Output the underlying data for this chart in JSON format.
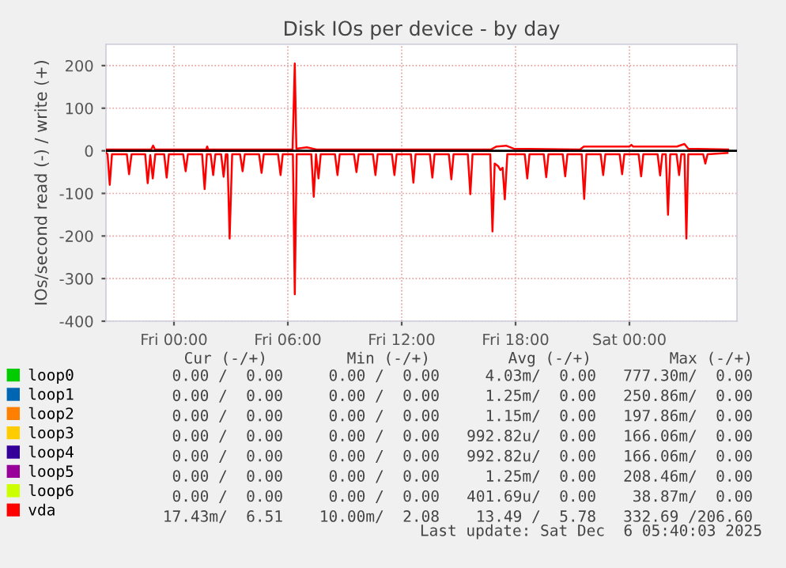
{
  "chart_data": {
    "type": "line",
    "title": "Disk IOs per device - by day",
    "ylabel": "IOs/second read (-) / write (+)",
    "xlim": [
      "2025-12-04T20:25",
      "2025-12-06T05:40"
    ],
    "xticks": [
      {
        "value": "2025-12-05T00:00",
        "label": "Fri 00:00"
      },
      {
        "value": "2025-12-05T06:00",
        "label": "Fri 06:00"
      },
      {
        "value": "2025-12-05T12:00",
        "label": "Fri 12:00"
      },
      {
        "value": "2025-12-05T18:00",
        "label": "Fri 18:00"
      },
      {
        "value": "2025-12-06T00:00",
        "label": "Sat 00:00"
      }
    ],
    "ylim": [
      -400,
      250
    ],
    "yticks": [
      -400,
      -300,
      -200,
      -100,
      0,
      100,
      200
    ],
    "grid": true,
    "legend": "bottom",
    "ref_lines": [
      {
        "axis": "y",
        "value": 0,
        "color": "#000000"
      }
    ],
    "series": [
      {
        "name": "loop0",
        "color": "#00cc00"
      },
      {
        "name": "loop1",
        "color": "#0066b3"
      },
      {
        "name": "loop2",
        "color": "#ff8000"
      },
      {
        "name": "loop3",
        "color": "#ffcc00"
      },
      {
        "name": "loop4",
        "color": "#330099"
      },
      {
        "name": "loop5",
        "color": "#990099"
      },
      {
        "name": "loop6",
        "color": "#ccff00"
      },
      {
        "name": "vda",
        "color": "#ff0000",
        "x": [
          "2025-12-04T20:26",
          "2025-12-04T20:30",
          "2025-12-04T20:37",
          "2025-12-04T20:44",
          "2025-12-04T21:31",
          "2025-12-04T21:38",
          "2025-12-04T21:46",
          "2025-12-04T22:29",
          "2025-12-04T22:37",
          "2025-12-04T22:45",
          "2025-12-04T22:53",
          "2025-12-04T23:01",
          "2025-12-04T23:29",
          "2025-12-04T23:37",
          "2025-12-04T23:44",
          "2025-12-05T00:29",
          "2025-12-05T00:37",
          "2025-12-05T00:44",
          "2025-12-05T01:29",
          "2025-12-05T01:37",
          "2025-12-05T01:44",
          "2025-12-05T01:56",
          "2025-12-05T02:04",
          "2025-12-05T02:11",
          "2025-12-05T02:29",
          "2025-12-05T02:37",
          "2025-12-05T02:44",
          "2025-12-05T02:49",
          "2025-12-05T02:56",
          "2025-12-05T03:04",
          "2025-12-05T03:29",
          "2025-12-05T03:37",
          "2025-12-05T03:44",
          "2025-12-05T04:29",
          "2025-12-05T04:37",
          "2025-12-05T04:44",
          "2025-12-05T05:29",
          "2025-12-05T05:37",
          "2025-12-05T05:44",
          "2025-12-05T06:16",
          "2025-12-05T06:22",
          "2025-12-05T06:28",
          "2025-12-05T07:14",
          "2025-12-05T07:22",
          "2025-12-05T07:29",
          "2025-12-05T07:37",
          "2025-12-05T07:44",
          "2025-12-05T08:29",
          "2025-12-05T08:37",
          "2025-12-05T08:44",
          "2025-12-05T09:29",
          "2025-12-05T09:37",
          "2025-12-05T09:44",
          "2025-12-05T10:29",
          "2025-12-05T10:37",
          "2025-12-05T10:44",
          "2025-12-05T11:29",
          "2025-12-05T11:37",
          "2025-12-05T11:44",
          "2025-12-05T12:29",
          "2025-12-05T12:37",
          "2025-12-05T12:44",
          "2025-12-05T13:29",
          "2025-12-05T13:37",
          "2025-12-05T13:44",
          "2025-12-05T14:29",
          "2025-12-05T14:37",
          "2025-12-05T14:44",
          "2025-12-05T15:29",
          "2025-12-05T15:37",
          "2025-12-05T15:44",
          "2025-12-05T16:40",
          "2025-12-05T16:47",
          "2025-12-05T16:54",
          "2025-12-05T17:05",
          "2025-12-05T17:12",
          "2025-12-05T17:19",
          "2025-12-05T17:26",
          "2025-12-05T17:34",
          "2025-12-05T18:29",
          "2025-12-05T18:37",
          "2025-12-05T18:44",
          "2025-12-05T19:29",
          "2025-12-05T19:37",
          "2025-12-05T19:44",
          "2025-12-05T20:29",
          "2025-12-05T20:37",
          "2025-12-05T20:44",
          "2025-12-05T21:29",
          "2025-12-05T21:37",
          "2025-12-05T21:44",
          "2025-12-05T22:29",
          "2025-12-05T22:37",
          "2025-12-05T22:44",
          "2025-12-05T23:29",
          "2025-12-05T23:37",
          "2025-12-05T23:44",
          "2025-12-06T00:29",
          "2025-12-06T00:37",
          "2025-12-06T00:44",
          "2025-12-06T01:29",
          "2025-12-06T01:37",
          "2025-12-06T01:44",
          "2025-12-06T01:55",
          "2025-12-06T02:02",
          "2025-12-06T02:09",
          "2025-12-06T02:29",
          "2025-12-06T02:37",
          "2025-12-06T02:44",
          "2025-12-06T02:54",
          "2025-12-06T03:00",
          "2025-12-06T03:06",
          "2025-12-06T03:53",
          "2025-12-06T04:00",
          "2025-12-06T04:07",
          "2025-12-06T05:10"
        ],
        "values": [
          -5,
          -8,
          -80,
          -8,
          -8,
          -55,
          -8,
          -8,
          -76,
          -10,
          -65,
          -8,
          -8,
          -63,
          -8,
          -8,
          -48,
          -8,
          -8,
          -90,
          -8,
          -8,
          -57,
          -8,
          -8,
          -61,
          -8,
          -8,
          -206,
          -8,
          -8,
          -48,
          -8,
          -8,
          -52,
          -8,
          -8,
          -57,
          -8,
          -8,
          -337,
          -8,
          -8,
          -108,
          -8,
          -65,
          -8,
          -8,
          -57,
          -8,
          -8,
          -50,
          -8,
          -8,
          -57,
          -8,
          -8,
          -57,
          -8,
          -8,
          -75,
          -8,
          -8,
          -63,
          -8,
          -8,
          -67,
          -8,
          -8,
          -102,
          -8,
          -8,
          -189,
          -30,
          -36,
          -45,
          -40,
          -114,
          -8,
          -8,
          -65,
          -8,
          -8,
          -62,
          -8,
          -8,
          -60,
          -8,
          -8,
          -113,
          -8,
          -8,
          -57,
          -8,
          -8,
          -55,
          -8,
          -8,
          -60,
          -8,
          -8,
          -58,
          -8,
          -8,
          -150,
          -8,
          -8,
          -57,
          -8,
          -8,
          -206,
          -8,
          -8,
          -30,
          -8,
          -5
        ]
      },
      {
        "color": "#ff0000",
        "x": [
          "2025-12-04T20:26",
          "2025-12-04T22:48",
          "2025-12-04T22:54",
          "2025-12-04T23:00",
          "2025-12-05T01:42",
          "2025-12-05T01:45",
          "2025-12-05T01:48",
          "2025-12-05T06:15",
          "2025-12-05T06:22",
          "2025-12-05T06:27",
          "2025-12-05T07:00",
          "2025-12-05T07:30",
          "2025-12-05T16:42",
          "2025-12-05T17:00",
          "2025-12-05T17:30",
          "2025-12-05T17:54",
          "2025-12-05T21:24",
          "2025-12-05T21:36",
          "2025-12-06T00:00",
          "2025-12-06T00:06",
          "2025-12-06T00:12",
          "2025-12-06T02:30",
          "2025-12-06T02:54",
          "2025-12-06T03:06",
          "2025-12-06T05:12"
        ],
        "values": [
          3,
          3,
          12,
          3,
          3,
          10,
          3,
          3,
          205,
          5,
          8,
          3,
          3,
          10,
          12,
          5,
          3,
          10,
          10,
          14,
          10,
          10,
          16,
          5,
          3
        ]
      }
    ],
    "annotations": [
      "Cur (-/+)",
      "Min (-/+)",
      "Avg (-/+)",
      "Max (-/+)",
      "0.00 /  0.00",
      "0.00 /  0.00",
      "4.03m/  0.00",
      "777.30m/  0.00",
      "0.00 /  0.00",
      "0.00 /  0.00",
      "1.25m/  0.00",
      "250.86m/  0.00",
      "0.00 /  0.00",
      "0.00 /  0.00",
      "1.15m/  0.00",
      "197.86m/  0.00",
      "0.00 /  0.00",
      "0.00 /  0.00",
      "992.82u/  0.00",
      "166.06m/  0.00",
      "0.00 /  0.00",
      "0.00 /  0.00",
      "992.82u/  0.00",
      "166.06m/  0.00",
      "0.00 /  0.00",
      "0.00 /  0.00",
      "1.25m/  0.00",
      "208.46m/  0.00",
      "0.00 /  0.00",
      "0.00 /  0.00",
      "401.69u/  0.00",
      "38.87m/  0.00",
      "17.43m/  6.51",
      "10.00m/  2.08",
      "13.49 /  5.78",
      "332.69 /206.60",
      "Last update: Sat Dec  6 05:40:03 2025"
    ]
  }
}
